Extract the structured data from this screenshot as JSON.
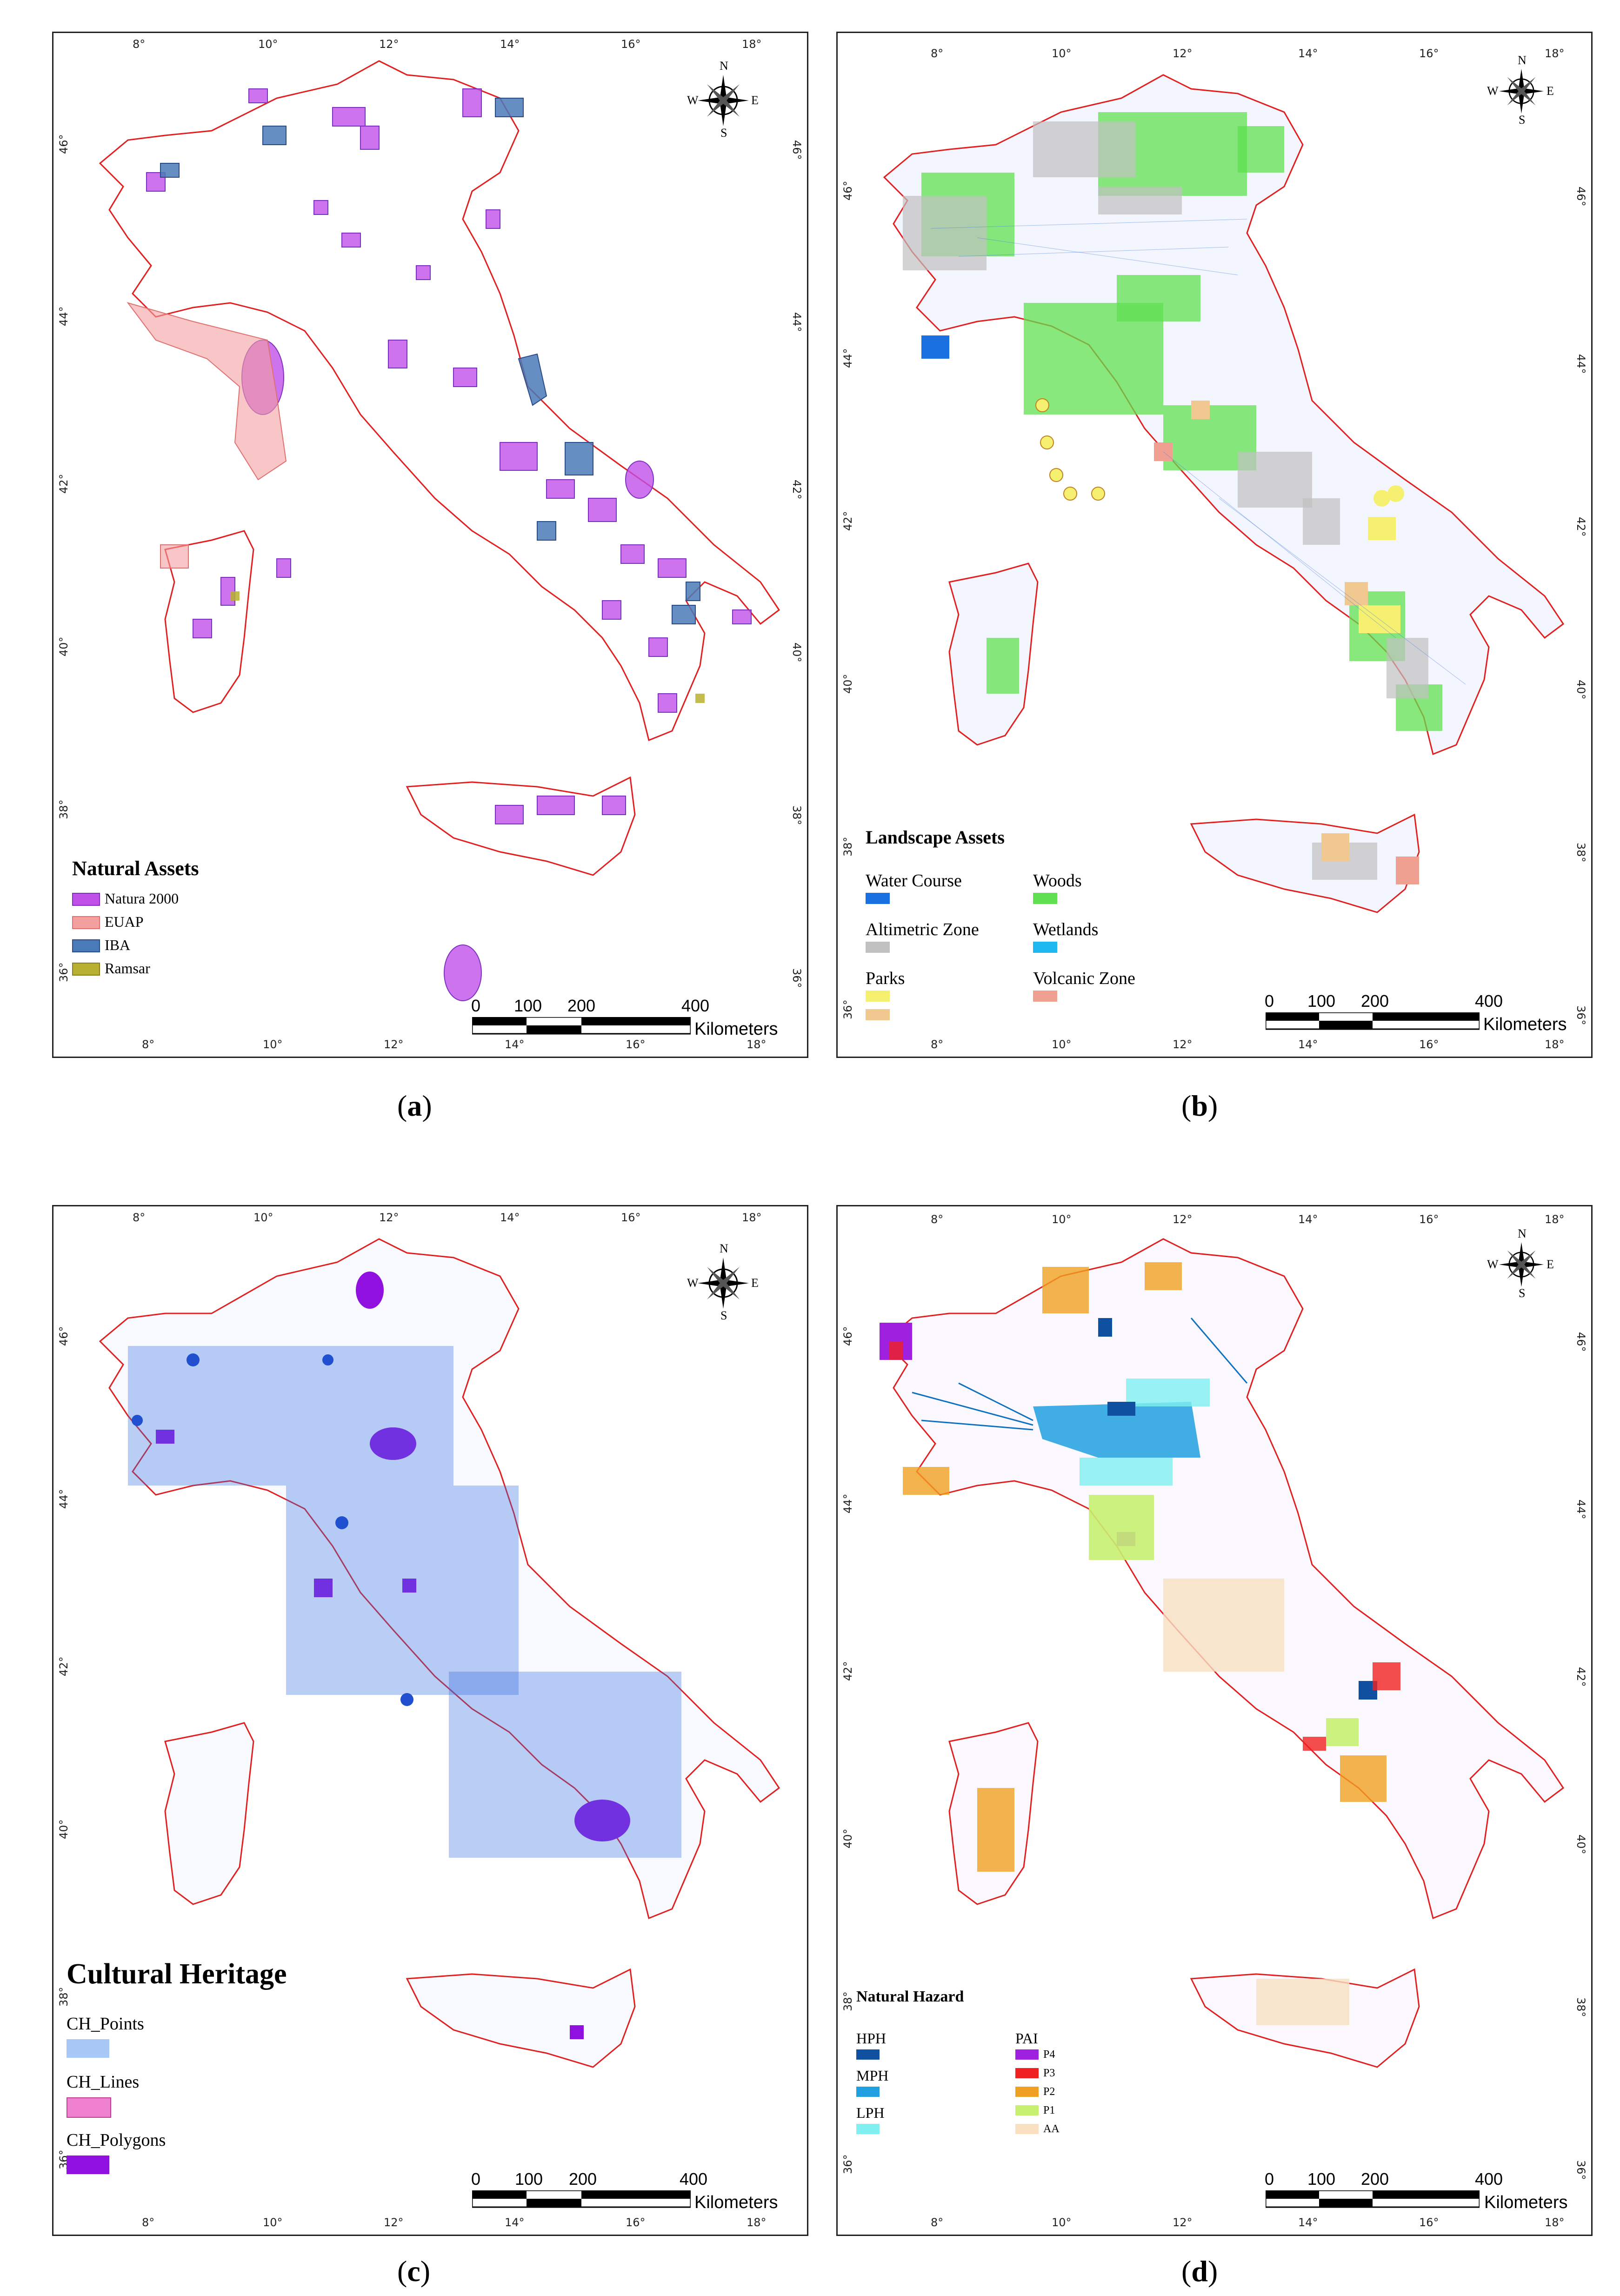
{
  "captions": {
    "a": "a",
    "b": "b",
    "c": "c",
    "d": "d"
  },
  "ticks": {
    "lon": [
      "8°",
      "10°",
      "12°",
      "14°",
      "16°",
      "18°"
    ],
    "lat": [
      "46°",
      "44°",
      "42°",
      "40°",
      "38°",
      "36°"
    ]
  },
  "compass": {
    "n": "N",
    "s": "S",
    "e": "E",
    "w": "W"
  },
  "scale": {
    "zero": "0",
    "one": "100",
    "two": "200",
    "four": "400",
    "unit": "Kilometers"
  },
  "panel_a": {
    "legend_title": "Natural Assets",
    "items": [
      {
        "label": "Natura 2000",
        "color": "#c050e8"
      },
      {
        "label": "EUAP",
        "color": "#f4a0a0"
      },
      {
        "label": "IBA",
        "color": "#4a7ab8"
      },
      {
        "label": "Ramsar",
        "color": "#b8b030"
      }
    ]
  },
  "panel_b": {
    "legend_title": "Landscape Assets",
    "items_left": [
      {
        "label": "Water Course",
        "color": "#1a70e0"
      },
      {
        "label": "Altimetric Zone",
        "color": "#c0c0c0"
      },
      {
        "label": "Parks",
        "color": "#f6f070"
      },
      {
        "label": "",
        "color": "#f0c890"
      }
    ],
    "items_right": [
      {
        "label": "Woods",
        "color": "#60e050"
      },
      {
        "label": "Wetlands",
        "color": "#20b8f0"
      },
      {
        "label": "Volcanic Zone",
        "color": "#f0a090"
      }
    ]
  },
  "panel_c": {
    "legend_title": "Cultural Heritage",
    "items": [
      {
        "label": "CH_Points",
        "color": "#a8c8f8"
      },
      {
        "label": "CH_Lines",
        "color": "#f080d0"
      },
      {
        "label": "CH_Polygons",
        "color": "#9010e0"
      }
    ]
  },
  "panel_d": {
    "legend_title": "Natural Hazard",
    "items_left": [
      {
        "label": "HPH",
        "color": "#1050a0"
      },
      {
        "label": "MPH",
        "color": "#20a0e0"
      },
      {
        "label": "LPH",
        "color": "#80f0f0"
      }
    ],
    "pai_title": "PAI",
    "items_right": [
      {
        "label": "P4",
        "color": "#a020e0"
      },
      {
        "label": "P3",
        "color": "#f02020"
      },
      {
        "label": "P2",
        "color": "#f0a020"
      },
      {
        "label": "P1",
        "color": "#c8f070"
      },
      {
        "label": "AA",
        "color": "#f8e0c0"
      }
    ]
  },
  "colors": {
    "border": "#e02020",
    "frame": "#222222"
  }
}
